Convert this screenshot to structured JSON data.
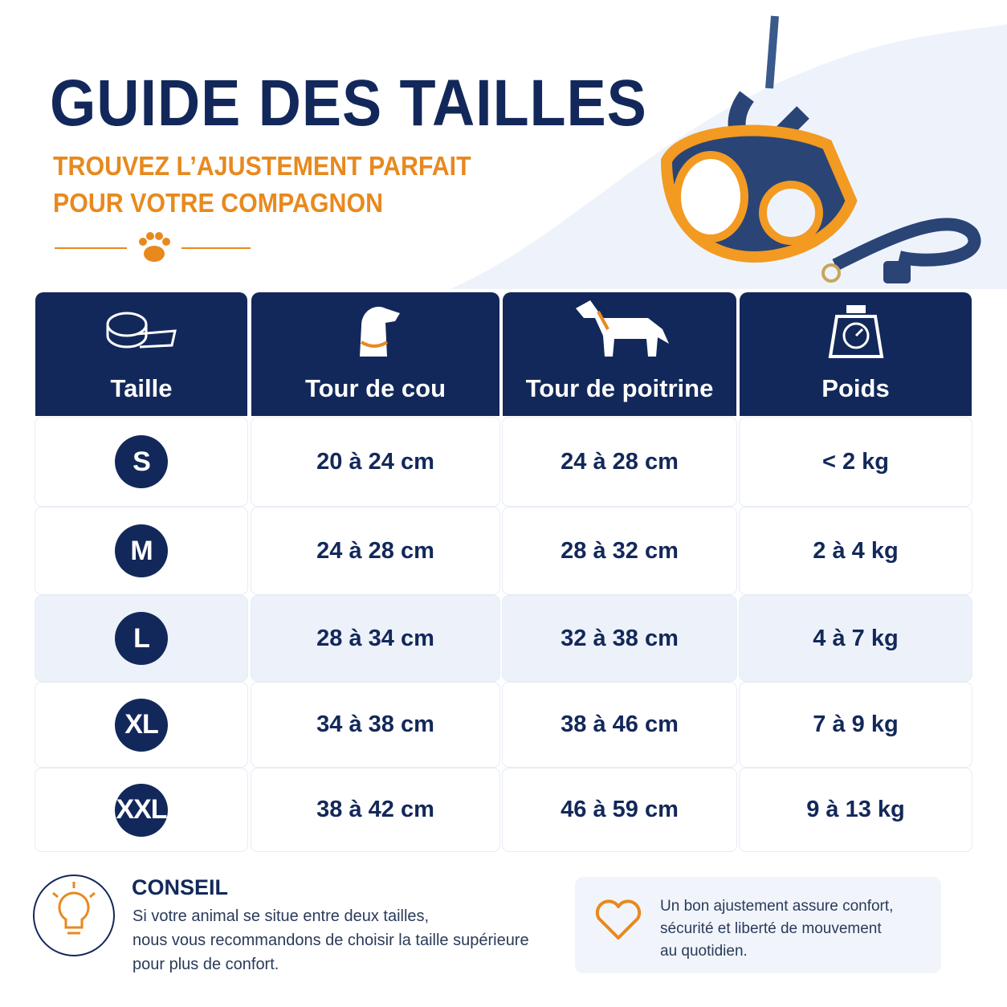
{
  "header": {
    "title": "GUIDE DES TAILLES",
    "subtitle": [
      "TROUVEZ L’AJUSTEMENT PARFAIT",
      "POUR VOTRE COMPAGNON"
    ]
  },
  "table": {
    "headers": [
      "Taille",
      "Tour de cou",
      "Tour de poitrine",
      "Poids"
    ],
    "rows": [
      [
        "S",
        "20 à 24 cm",
        "24 à 28 cm",
        "< 2 kg"
      ],
      [
        "M",
        "24 à 28 cm",
        "28 à 32 cm",
        "2 à 4 kg"
      ],
      [
        "L",
        "28 à 34 cm",
        "32 à 38 cm",
        "4 à 7 kg"
      ],
      [
        "XL",
        "34 à 38 cm",
        "38 à 46 cm",
        "7 à 9 kg"
      ],
      [
        "XXL",
        "38 à 42 cm",
        "46 à 59 cm",
        "9 à 13 kg"
      ]
    ]
  },
  "tip": {
    "title": "CONSEIL",
    "lines": [
      "Si votre animal se situe entre deux tailles,",
      "nous vous recommandons de choisir la taille supérieure",
      "pour plus de confort."
    ]
  },
  "note": {
    "lines": [
      "Un bon ajustement assure confort,",
      "sécurité et liberté de mouvement",
      "au quotidien."
    ]
  }
}
